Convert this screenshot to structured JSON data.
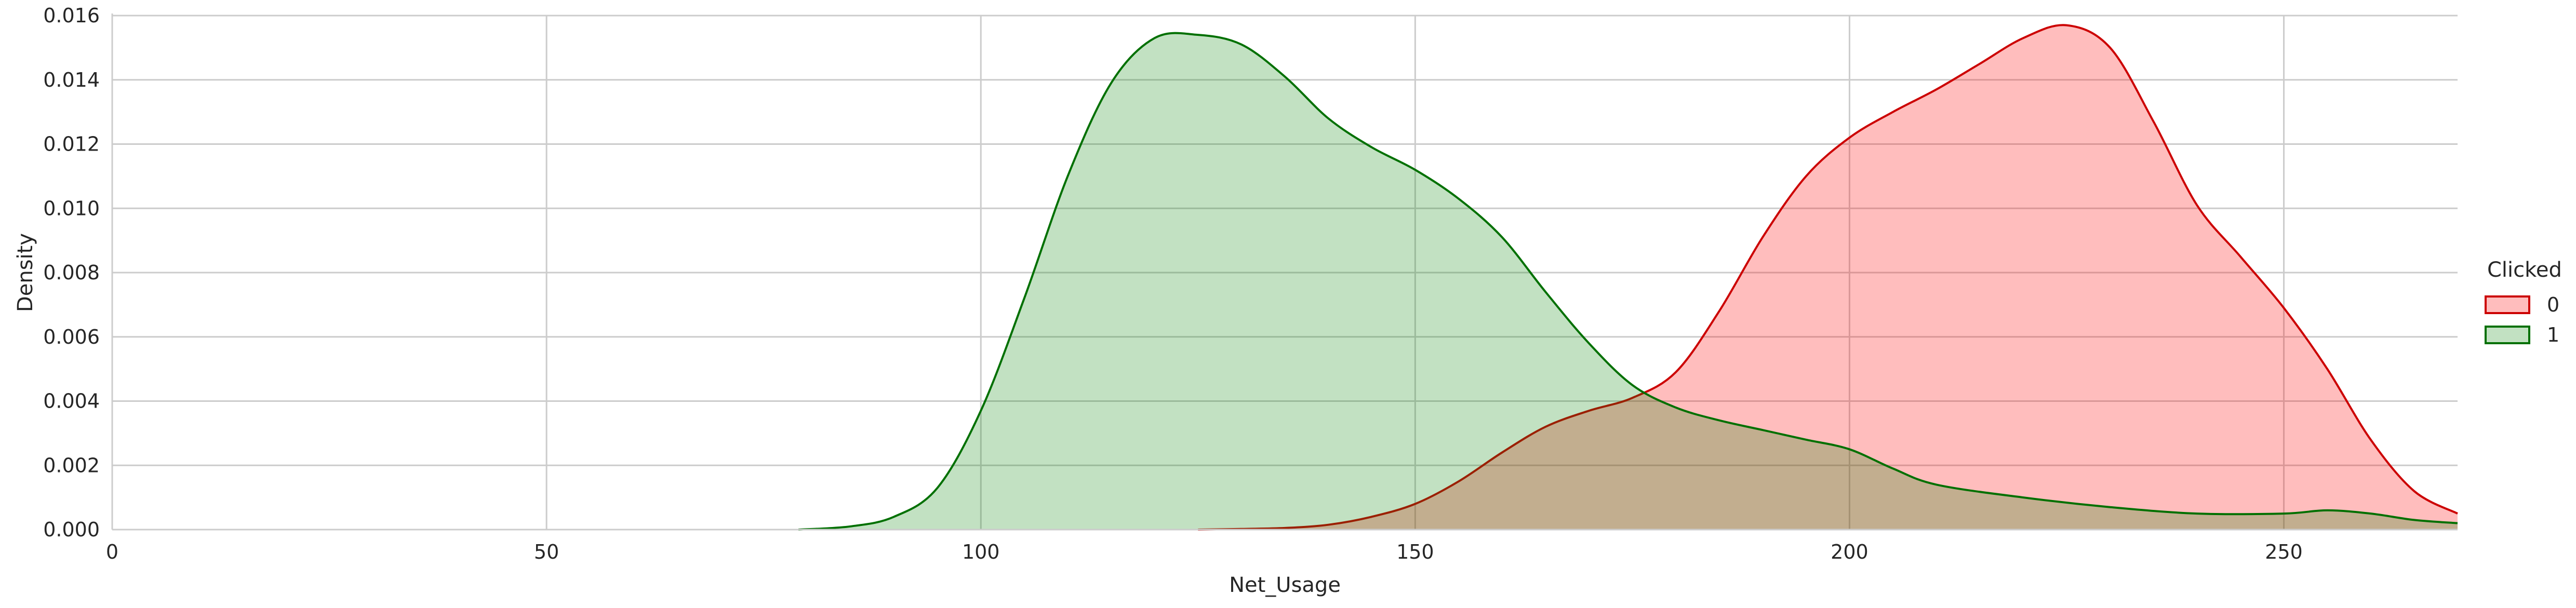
{
  "chart_data": {
    "type": "area",
    "title": "",
    "xlabel": "Net_Usage",
    "ylabel": "Density",
    "xlim": [
      0,
      270
    ],
    "ylim": [
      0,
      0.016
    ],
    "x_ticks": [
      0,
      50,
      100,
      150,
      200,
      250
    ],
    "y_ticks": [
      0.0,
      0.002,
      0.004,
      0.006,
      0.008,
      0.01,
      0.012,
      0.014,
      0.016
    ],
    "y_tick_decimals": 3,
    "grid": true,
    "legend": {
      "title": "Clicked",
      "placement": "right"
    },
    "series": [
      {
        "name": "0",
        "line_color": "#cc0000",
        "fill_color": "#ff0000",
        "fill_opacity": 0.26,
        "x": [
          125,
          130,
          135,
          140,
          145,
          150,
          155,
          160,
          165,
          170,
          175,
          180,
          185,
          190,
          195,
          200,
          205,
          210,
          215,
          220,
          225,
          230,
          235,
          240,
          245,
          250,
          255,
          260,
          265,
          270
        ],
        "y": [
          0.0,
          2e-05,
          5e-05,
          0.00015,
          0.0004,
          0.0008,
          0.0015,
          0.0024,
          0.0032,
          0.0037,
          0.0041,
          0.0049,
          0.0068,
          0.0091,
          0.011,
          0.0122,
          0.013,
          0.0137,
          0.0145,
          0.0153,
          0.0157,
          0.015,
          0.0127,
          0.0101,
          0.0085,
          0.0069,
          0.005,
          0.0028,
          0.0012,
          0.0005
        ]
      },
      {
        "name": "1",
        "line_color": "#007000",
        "fill_color": "#008000",
        "fill_opacity": 0.24,
        "x": [
          79,
          85,
          90,
          95,
          100,
          105,
          110,
          115,
          120,
          125,
          130,
          135,
          140,
          145,
          150,
          155,
          160,
          165,
          170,
          175,
          180,
          185,
          190,
          195,
          200,
          205,
          210,
          220,
          230,
          240,
          250,
          255,
          260,
          265,
          270
        ],
        "y": [
          0.0,
          0.0001,
          0.0004,
          0.0013,
          0.0037,
          0.0072,
          0.011,
          0.0139,
          0.0153,
          0.0154,
          0.0151,
          0.0141,
          0.0128,
          0.0119,
          0.0112,
          0.0103,
          0.0091,
          0.0074,
          0.0058,
          0.0045,
          0.0038,
          0.0034,
          0.0031,
          0.0028,
          0.0025,
          0.0019,
          0.0014,
          0.001,
          0.0007,
          0.0005,
          0.0005,
          0.0006,
          0.0005,
          0.0003,
          0.0002
        ]
      }
    ]
  }
}
